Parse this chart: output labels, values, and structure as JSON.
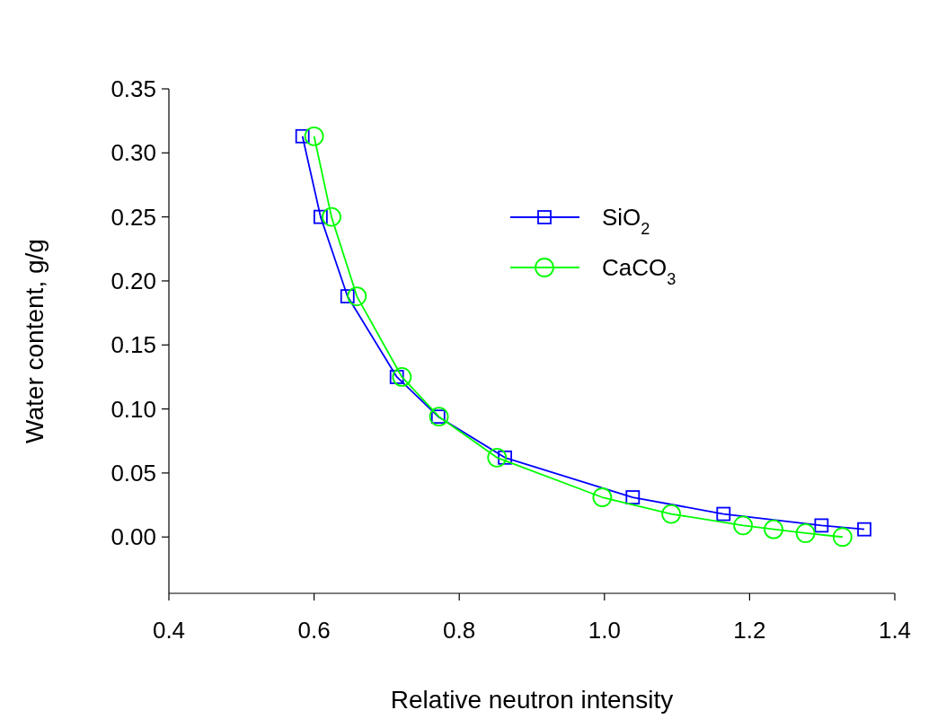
{
  "chart_data": {
    "type": "line",
    "xlabel": "Relative neutron intensity",
    "ylabel": "Water content, g/g",
    "xlim": [
      0.4,
      1.4
    ],
    "xticks": [
      {
        "value": 0.4,
        "label": "0.4"
      },
      {
        "value": 0.6,
        "label": "0.6"
      },
      {
        "value": 0.8,
        "label": "0.8"
      },
      {
        "value": 1.0,
        "label": "1.0"
      },
      {
        "value": 1.2,
        "label": "1.2"
      },
      {
        "value": 1.4,
        "label": "1.4"
      }
    ],
    "ylim": [
      -0.044,
      0.35
    ],
    "yticks": [
      {
        "value": 0,
        "label": "0.00"
      },
      {
        "value": 0.05,
        "label": "0.05"
      },
      {
        "value": 0.1,
        "label": "0.10"
      },
      {
        "value": 0.15,
        "label": "0.15"
      },
      {
        "value": 0.2,
        "label": "0.20"
      },
      {
        "value": 0.25,
        "label": "0.25"
      },
      {
        "value": 0.3,
        "label": "0.30"
      },
      {
        "value": 0.35,
        "label": "0.35"
      }
    ],
    "grid": false,
    "legend": "top right",
    "series": [
      {
        "name": "SiO$_{2}$",
        "color": "#0000ff",
        "marker": "square",
        "x": [
          0.584,
          0.609,
          0.646,
          0.714,
          0.771,
          0.863,
          1.039,
          1.164,
          1.299,
          1.358
        ],
        "values": [
          0.313,
          0.25,
          0.188,
          0.125,
          0.094,
          0.062,
          0.031,
          0.018,
          0.009,
          0.006
        ]
      },
      {
        "name": "CaCO$_{3}$",
        "color": "#00ff00",
        "marker": "circle",
        "x": [
          0.6,
          0.624,
          0.659,
          0.721,
          0.772,
          0.852,
          0.997,
          1.092,
          1.191,
          1.233,
          1.277,
          1.328
        ],
        "values": [
          0.313,
          0.25,
          0.188,
          0.125,
          0.094,
          0.062,
          0.031,
          0.018,
          0.009,
          0.006,
          0.003,
          0
        ]
      }
    ]
  }
}
